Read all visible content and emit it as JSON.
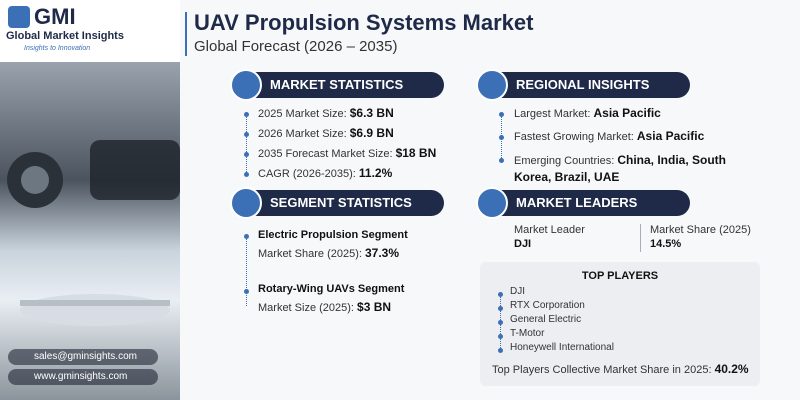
{
  "logo": {
    "mark": "GMI",
    "name": "Global Market Insights",
    "tagline": "Insights to Innovation"
  },
  "header": {
    "title": "UAV Propulsion Systems Market",
    "subtitle": "Global Forecast (2026 – 2035)"
  },
  "market_statistics": {
    "title": "MARKET STATISTICS",
    "items": [
      {
        "label": "2025 Market Size:",
        "value": "$6.3 BN"
      },
      {
        "label": "2026 Market Size:",
        "value": "$6.9 BN"
      },
      {
        "label": "2035 Forecast Market Size:",
        "value": "$18 BN"
      },
      {
        "label": "CAGR (2026-2035):",
        "value": "11.2%"
      }
    ]
  },
  "regional_insights": {
    "title": "REGIONAL INSIGHTS",
    "items": [
      {
        "label": "Largest Market:",
        "value": "Asia Pacific"
      },
      {
        "label": "Fastest Growing Market:",
        "value": "Asia Pacific"
      },
      {
        "label": "Emerging Countries:",
        "value": "China, India, South Korea, Brazil, UAE"
      }
    ]
  },
  "segment_statistics": {
    "title": "SEGMENT STATISTICS",
    "items": [
      {
        "name": "Electric Propulsion Segment",
        "label": "Market Share (2025):",
        "value": "37.3%"
      },
      {
        "name": "Rotary-Wing UAVs Segment",
        "label": "Market Size (2025):",
        "value": "$3 BN"
      }
    ]
  },
  "market_leaders": {
    "title": "MARKET LEADERS",
    "leader_label": "Market Leader",
    "leader": "DJI",
    "share_label": "Market Share (2025)",
    "share": "14.5%"
  },
  "top_players": {
    "title": "TOP PLAYERS",
    "players": [
      "DJI",
      "RTX Corporation",
      "General Electric",
      "T-Motor",
      "Honeywell International"
    ],
    "collective_label": "Top Players Collective Market Share in 2025:",
    "collective_value": "40.2%"
  },
  "contact": {
    "email": "sales@gminsights.com",
    "website": "www.gminsights.com"
  }
}
